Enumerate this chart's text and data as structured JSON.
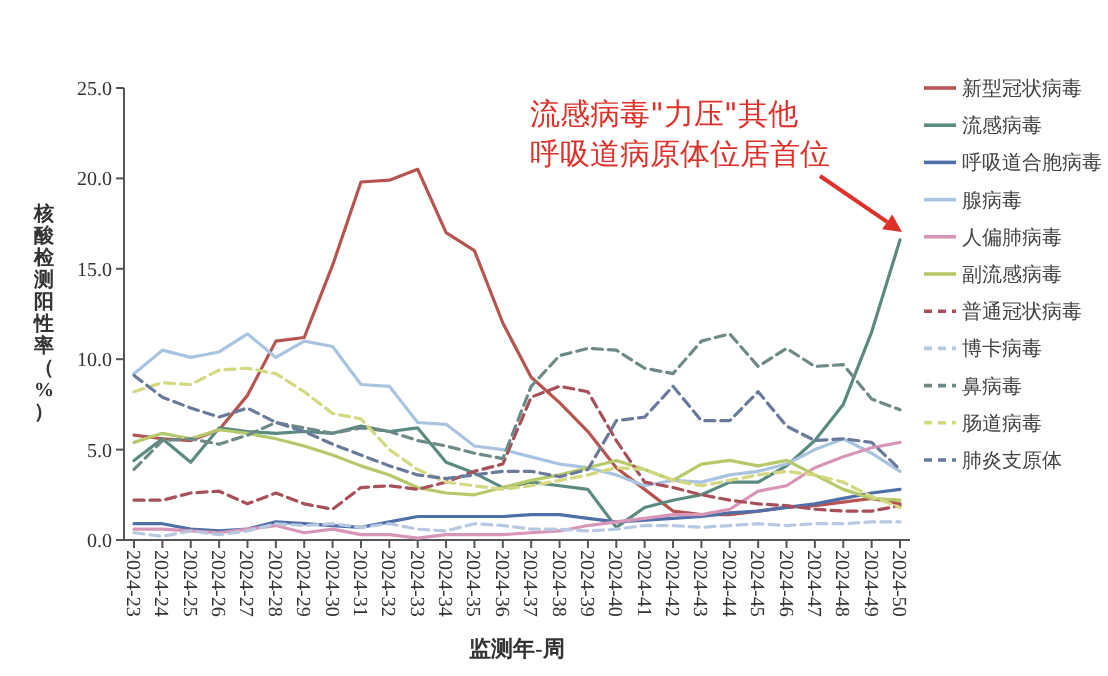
{
  "chart_data": {
    "type": "line",
    "ylabel": "核酸检测阳性率（%）",
    "xlabel": "监测年-周",
    "categories": [
      "2024-23",
      "2024-24",
      "2024-25",
      "2024-26",
      "2024-27",
      "2024-28",
      "2024-29",
      "2024-30",
      "2024-31",
      "2024-32",
      "2024-33",
      "2024-34",
      "2024-35",
      "2024-36",
      "2024-37",
      "2024-38",
      "2024-39",
      "2024-40",
      "2024-41",
      "2024-42",
      "2024-43",
      "2024-44",
      "2024-45",
      "2024-46",
      "2024-47",
      "2024-48",
      "2024-49",
      "2024-50"
    ],
    "ylim": [
      0,
      25
    ],
    "yticks": [
      {
        "value": 0,
        "label": "0.0"
      },
      {
        "value": 5,
        "label": "5.0"
      },
      {
        "value": 10,
        "label": "10.0"
      },
      {
        "value": 15,
        "label": "15.0"
      },
      {
        "value": 20,
        "label": "20.0"
      },
      {
        "value": 25,
        "label": "25.0"
      }
    ],
    "grid": false,
    "legend": "right",
    "marker": "none",
    "series": [
      {
        "name": "新型冠状病毒",
        "color": "#b85450",
        "line_style": "solid",
        "values": [
          5.8,
          5.6,
          5.5,
          6.1,
          8.0,
          11.0,
          11.2,
          15.2,
          19.8,
          19.9,
          20.5,
          17.0,
          16.0,
          12.0,
          9.0,
          7.6,
          6.0,
          4.0,
          2.8,
          1.6,
          1.4,
          1.4,
          1.6,
          1.8,
          1.9,
          2.1,
          2.3,
          2.0
        ]
      },
      {
        "name": "流感病毒",
        "color": "#5b8a80",
        "line_style": "solid",
        "values": [
          4.4,
          5.6,
          4.3,
          6.2,
          6.0,
          5.9,
          6.0,
          5.9,
          6.3,
          6.0,
          6.2,
          4.3,
          3.7,
          2.9,
          3.2,
          3.0,
          2.8,
          0.7,
          1.8,
          2.2,
          2.5,
          3.2,
          3.2,
          4.1,
          5.5,
          7.5,
          11.5,
          16.6
        ]
      },
      {
        "name": "呼吸道合胞病毒",
        "color": "#4f6fa8",
        "line_style": "solid",
        "values": [
          0.9,
          0.9,
          0.6,
          0.5,
          0.6,
          1.0,
          0.9,
          0.8,
          0.7,
          1.0,
          1.3,
          1.3,
          1.3,
          1.3,
          1.4,
          1.4,
          1.2,
          1.0,
          1.1,
          1.2,
          1.3,
          1.5,
          1.6,
          1.8,
          2.0,
          2.3,
          2.6,
          2.8
        ]
      },
      {
        "name": "腺病毒",
        "color": "#a9c4e0",
        "line_style": "solid",
        "values": [
          9.2,
          10.5,
          10.1,
          10.4,
          11.4,
          10.1,
          11.0,
          10.7,
          8.6,
          8.5,
          6.5,
          6.4,
          5.2,
          5.0,
          4.6,
          4.2,
          4.0,
          3.6,
          3.0,
          3.3,
          3.2,
          3.6,
          3.8,
          4.2,
          5.0,
          5.6,
          4.8,
          3.8
        ]
      },
      {
        "name": "人偏肺病毒",
        "color": "#d795b8",
        "line_style": "solid",
        "values": [
          0.6,
          0.6,
          0.5,
          0.4,
          0.6,
          0.8,
          0.4,
          0.6,
          0.3,
          0.3,
          0.1,
          0.3,
          0.3,
          0.3,
          0.4,
          0.5,
          0.8,
          1.0,
          1.2,
          1.4,
          1.4,
          1.7,
          2.7,
          3.0,
          4.0,
          4.6,
          5.1,
          5.4
        ]
      },
      {
        "name": "副流感病毒",
        "color": "#b5c96a",
        "line_style": "solid",
        "values": [
          5.4,
          5.9,
          5.6,
          6.1,
          5.9,
          5.6,
          5.2,
          4.7,
          4.1,
          3.6,
          2.9,
          2.6,
          2.5,
          2.9,
          3.3,
          3.6,
          4.0,
          4.4,
          3.9,
          3.3,
          4.2,
          4.4,
          4.1,
          4.4,
          3.6,
          2.8,
          2.3,
          2.2
        ]
      },
      {
        "name": "普通冠状病毒",
        "color": "#a8505a",
        "line_style": "dashed",
        "values": [
          2.2,
          2.2,
          2.6,
          2.7,
          2.0,
          2.6,
          2.0,
          1.7,
          2.9,
          3.0,
          2.8,
          3.2,
          3.8,
          4.2,
          7.9,
          8.5,
          8.2,
          5.5,
          3.2,
          2.9,
          2.5,
          2.2,
          2.0,
          1.9,
          1.7,
          1.6,
          1.6,
          1.9
        ]
      },
      {
        "name": "博卡病毒",
        "color": "#b8c8e0",
        "line_style": "dashed",
        "values": [
          0.4,
          0.2,
          0.5,
          0.3,
          0.5,
          0.9,
          0.8,
          0.9,
          0.7,
          0.9,
          0.6,
          0.5,
          0.9,
          0.8,
          0.6,
          0.6,
          0.5,
          0.6,
          0.8,
          0.8,
          0.7,
          0.8,
          0.9,
          0.8,
          0.9,
          0.9,
          1.0,
          1.0
        ]
      },
      {
        "name": "鼻病毒",
        "color": "#6e8a88",
        "line_style": "dashed",
        "values": [
          3.9,
          5.5,
          5.6,
          5.3,
          5.8,
          6.5,
          6.2,
          5.9,
          6.2,
          6.0,
          5.5,
          5.2,
          4.8,
          4.5,
          8.5,
          10.2,
          10.6,
          10.5,
          9.5,
          9.2,
          11.0,
          11.4,
          9.6,
          10.6,
          9.6,
          9.7,
          7.8,
          7.2
        ]
      },
      {
        "name": "肠道病毒",
        "color": "#d4d880",
        "line_style": "dashed",
        "values": [
          8.2,
          8.7,
          8.6,
          9.4,
          9.5,
          9.2,
          8.2,
          7.0,
          6.7,
          5.0,
          3.9,
          3.2,
          3.0,
          2.8,
          3.0,
          3.3,
          3.6,
          4.0,
          3.9,
          3.3,
          3.0,
          3.3,
          3.6,
          3.8,
          3.6,
          3.2,
          2.4,
          1.8
        ]
      },
      {
        "name": "肺炎支原体",
        "color": "#6a7a9a",
        "line_style": "dashed",
        "values": [
          9.1,
          7.9,
          7.3,
          6.8,
          7.3,
          6.5,
          6.0,
          5.3,
          4.7,
          4.1,
          3.6,
          3.4,
          3.6,
          3.8,
          3.8,
          3.5,
          3.9,
          6.6,
          6.8,
          8.5,
          6.6,
          6.6,
          8.2,
          6.3,
          5.5,
          5.6,
          5.4,
          3.9
        ]
      }
    ],
    "annotations": [
      "流感病毒\"力压\"其他呼吸道病原体位居首位"
    ]
  }
}
